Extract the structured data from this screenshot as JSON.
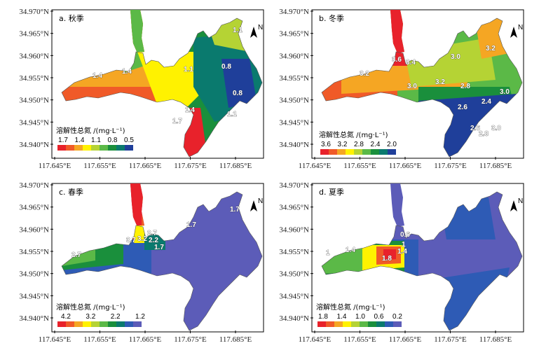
{
  "axes": {
    "y_ticks": [
      "34.970°N",
      "34.965°N",
      "34.960°N",
      "34.955°N",
      "34.950°N",
      "34.945°N",
      "34.940°N"
    ],
    "x_ticks": [
      "117.645°E",
      "117.655°E",
      "117.665°E",
      "117.675°E",
      "117.685°E"
    ]
  },
  "north_label": "N",
  "panels": [
    {
      "label": "a. 秋季",
      "legend_title": "溶解性总氮 /(mg·L⁻¹)",
      "legend_values": [
        "1.7",
        "1.4",
        "1.1",
        "0.8",
        "0.5"
      ],
      "legend_colors": [
        "#e8222b",
        "#f05a28",
        "#f5a623",
        "#fff200",
        "#b5d334",
        "#5bb947",
        "#1a8f3c",
        "#0a7a6e",
        "#1f3f9a"
      ],
      "contour_labels": [
        "1.1",
        "1.4",
        "1.4",
        "1.1",
        "0.8",
        "0.8",
        "1.4",
        "1.7",
        "1.1"
      ]
    },
    {
      "label": "b. 冬季",
      "legend_title": "溶解性总氮 /(mg·L⁻¹)",
      "legend_values": [
        "3.6",
        "3.2",
        "2.8",
        "2.4",
        "2.0"
      ],
      "legend_colors": [
        "#e8222b",
        "#f05a28",
        "#f5a623",
        "#fff200",
        "#b5d334",
        "#5bb947",
        "#1a8f3c",
        "#0a7a6e",
        "#1f3f9a"
      ],
      "contour_labels": [
        "3.6",
        "3.4",
        "3.2",
        "3.0",
        "3.2",
        "3.0",
        "3.2",
        "2.8",
        "3.0",
        "2.6",
        "2.4",
        "2.6",
        "2.8",
        "3.0"
      ]
    },
    {
      "label": "c. 春季",
      "legend_title": "溶解性总氮 /(mg·L⁻¹)",
      "legend_values": [
        "4.2",
        "3.2",
        "2.2",
        "1.2"
      ],
      "legend_colors": [
        "#e8222b",
        "#f05a28",
        "#f5a623",
        "#fff200",
        "#b5d334",
        "#5bb947",
        "#1a8f3c",
        "#0a7a6e",
        "#2e5bb5",
        "#5c5cb8"
      ],
      "contour_labels": [
        "1.7",
        "1.7",
        "2.7",
        "3.7",
        "3.2",
        "2.7",
        "2.2",
        "1.7"
      ]
    },
    {
      "label": "d. 夏季",
      "legend_title": "溶解性总氮 /(mg·L⁻¹)",
      "legend_values": [
        "1.8",
        "1.4",
        "1.0",
        "0.6",
        "0.2"
      ],
      "legend_colors": [
        "#e8222b",
        "#f05a28",
        "#f5a623",
        "#fff200",
        "#b5d334",
        "#5bb947",
        "#1a8f3c",
        "#0a7a6e",
        "#2e5bb5",
        "#5c5cb8"
      ],
      "contour_labels": [
        "0.6",
        "1",
        "1.4",
        "1",
        "1.4",
        "1.8"
      ]
    }
  ]
}
